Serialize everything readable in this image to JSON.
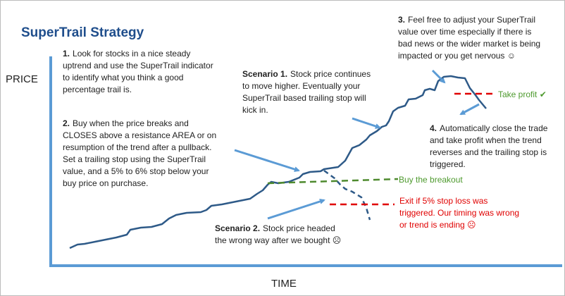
{
  "title": "SuperTrail Strategy",
  "axes": {
    "y_label": "PRICE",
    "x_label": "TIME"
  },
  "steps": [
    {
      "label": "1.",
      "lines": [
        "Look for stocks in a nice steady",
        "uptrend and use the SuperTrail indicator",
        "to identify what you think a good",
        "percentage trail is."
      ]
    },
    {
      "label": "2.",
      "lines": [
        "Buy when the price breaks and",
        "CLOSES above a resistance AREA or on",
        "resumption of the trend after a pullback.",
        "Set a trailing stop using the SuperTrail",
        "value, and a 5% to 6% stop below your",
        "buy price on purchase."
      ]
    },
    {
      "label": "3.",
      "lines": [
        "Feel free to adjust your SuperTrail",
        "value over time especially if there is",
        "bad news or the wider market is being",
        "impacted or you get nervous ☺"
      ]
    },
    {
      "label": "4.",
      "lines": [
        "Automatically close the trade",
        "and take profit when the trend",
        "reverses and the trailing stop is",
        "triggered."
      ]
    }
  ],
  "scenarios": [
    {
      "label": "Scenario 1.",
      "lines": [
        "Stock price continues",
        "to move higher. Eventually your",
        "SuperTrail based trailing stop will",
        "kick in."
      ]
    },
    {
      "label": "Scenario 2.",
      "lines": [
        "Stock price headed",
        "the wrong way after we bought ☹"
      ]
    }
  ],
  "annotations": {
    "take_profit": "Take profit ✔",
    "buy_breakout": "Buy the breakout",
    "exit": [
      "Exit if 5% stop loss was",
      "triggered. Our timing was wrong",
      "or trend is ending ☹"
    ]
  }
}
